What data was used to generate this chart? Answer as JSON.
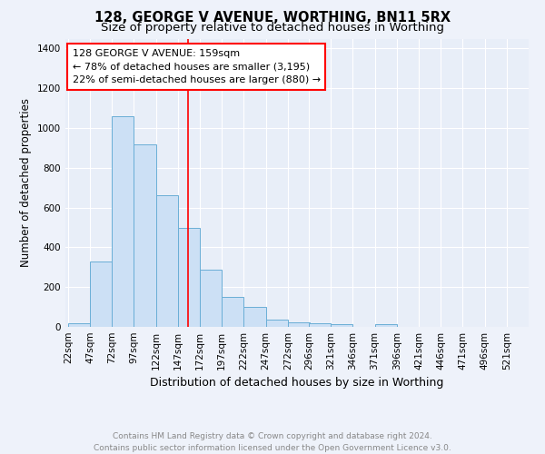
{
  "title": "128, GEORGE V AVENUE, WORTHING, BN11 5RX",
  "subtitle": "Size of property relative to detached houses in Worthing",
  "xlabel": "Distribution of detached houses by size in Worthing",
  "ylabel": "Number of detached properties",
  "footer": "Contains HM Land Registry data © Crown copyright and database right 2024.\nContains public sector information licensed under the Open Government Licence v3.0.",
  "bar_labels": [
    "22sqm",
    "47sqm",
    "72sqm",
    "97sqm",
    "122sqm",
    "147sqm",
    "172sqm",
    "197sqm",
    "222sqm",
    "247sqm",
    "272sqm",
    "296sqm",
    "321sqm",
    "346sqm",
    "371sqm",
    "396sqm",
    "421sqm",
    "446sqm",
    "471sqm",
    "496sqm",
    "521sqm"
  ],
  "bar_values": [
    20,
    330,
    1060,
    920,
    660,
    500,
    290,
    150,
    100,
    35,
    25,
    20,
    13,
    0,
    12,
    0,
    0,
    0,
    0,
    0,
    0
  ],
  "bar_color": "#cce0f5",
  "bar_edge_color": "#6aaed6",
  "annotation_line_color": "red",
  "annotation_box_text": "128 GEORGE V AVENUE: 159sqm\n← 78% of detached houses are smaller (3,195)\n22% of semi-detached houses are larger (880) →",
  "ylim": [
    0,
    1450
  ],
  "bin_width": 25,
  "property_sqm": 159,
  "background_color": "#eef2fa",
  "axes_background": "#e8eef8",
  "grid_color": "#ffffff",
  "title_fontsize": 10.5,
  "subtitle_fontsize": 9.5,
  "xlabel_fontsize": 9,
  "ylabel_fontsize": 8.5,
  "tick_fontsize": 7.5,
  "annotation_fontsize": 8,
  "footer_fontsize": 6.5
}
